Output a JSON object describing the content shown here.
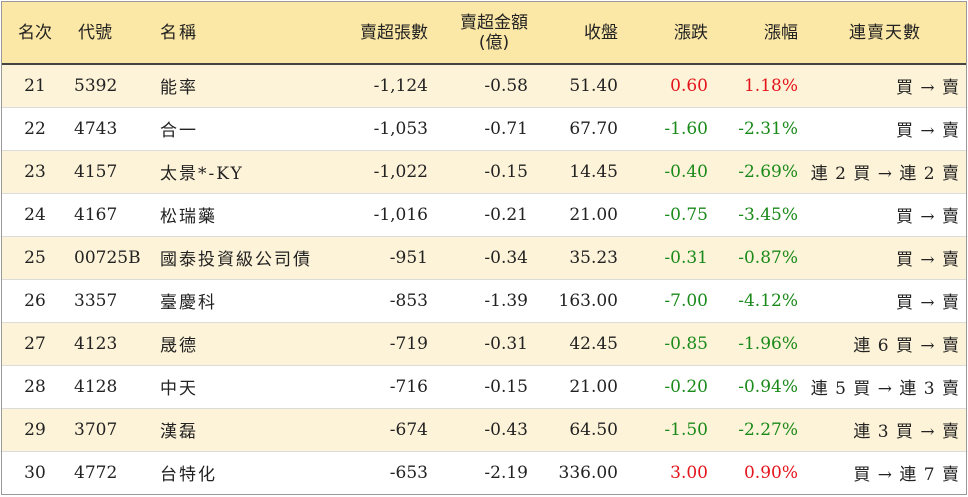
{
  "headers": {
    "rank": "名次",
    "code": "代號",
    "name": "名稱",
    "net_shares": "賣超張數",
    "net_amount_line1": "賣超金額",
    "net_amount_line2": "(億)",
    "close": "收盤",
    "change": "漲跌",
    "pct": "漲幅",
    "trend": "連賣天數"
  },
  "colors": {
    "up": "#e3141c",
    "down": "#1a8a1a",
    "header_bg": "#fbe7a6",
    "stripe_bg": "#fdf3d8"
  },
  "rows": [
    {
      "rank": "21",
      "code": "5392",
      "name": "能率",
      "net_shares": "-1,124",
      "net_amount": "-0.58",
      "close": "51.40",
      "change": "0.60",
      "pct": "1.18%",
      "trend": "買 → 賣",
      "direction": "up"
    },
    {
      "rank": "22",
      "code": "4743",
      "name": "合一",
      "net_shares": "-1,053",
      "net_amount": "-0.71",
      "close": "67.70",
      "change": "-1.60",
      "pct": "-2.31%",
      "trend": "買 → 賣",
      "direction": "down"
    },
    {
      "rank": "23",
      "code": "4157",
      "name": "太景*-KY",
      "net_shares": "-1,022",
      "net_amount": "-0.15",
      "close": "14.45",
      "change": "-0.40",
      "pct": "-2.69%",
      "trend": "連 2 買 → 連 2 賣",
      "direction": "down"
    },
    {
      "rank": "24",
      "code": "4167",
      "name": "松瑞藥",
      "net_shares": "-1,016",
      "net_amount": "-0.21",
      "close": "21.00",
      "change": "-0.75",
      "pct": "-3.45%",
      "trend": "買 → 賣",
      "direction": "down"
    },
    {
      "rank": "25",
      "code": "00725B",
      "name": "國泰投資級公司債",
      "net_shares": "-951",
      "net_amount": "-0.34",
      "close": "35.23",
      "change": "-0.31",
      "pct": "-0.87%",
      "trend": "買 → 賣",
      "direction": "down"
    },
    {
      "rank": "26",
      "code": "3357",
      "name": "臺慶科",
      "net_shares": "-853",
      "net_amount": "-1.39",
      "close": "163.00",
      "change": "-7.00",
      "pct": "-4.12%",
      "trend": "買 → 賣",
      "direction": "down"
    },
    {
      "rank": "27",
      "code": "4123",
      "name": "晟德",
      "net_shares": "-719",
      "net_amount": "-0.31",
      "close": "42.45",
      "change": "-0.85",
      "pct": "-1.96%",
      "trend": "連 6 買 → 賣",
      "direction": "down"
    },
    {
      "rank": "28",
      "code": "4128",
      "name": "中天",
      "net_shares": "-716",
      "net_amount": "-0.15",
      "close": "21.00",
      "change": "-0.20",
      "pct": "-0.94%",
      "trend": "連 5 買 → 連 3 賣",
      "direction": "down"
    },
    {
      "rank": "29",
      "code": "3707",
      "name": "漢磊",
      "net_shares": "-674",
      "net_amount": "-0.43",
      "close": "64.50",
      "change": "-1.50",
      "pct": "-2.27%",
      "trend": "連 3 買 → 賣",
      "direction": "down"
    },
    {
      "rank": "30",
      "code": "4772",
      "name": "台特化",
      "net_shares": "-653",
      "net_amount": "-2.19",
      "close": "336.00",
      "change": "3.00",
      "pct": "0.90%",
      "trend": "買 → 連 7 賣",
      "direction": "up"
    }
  ]
}
